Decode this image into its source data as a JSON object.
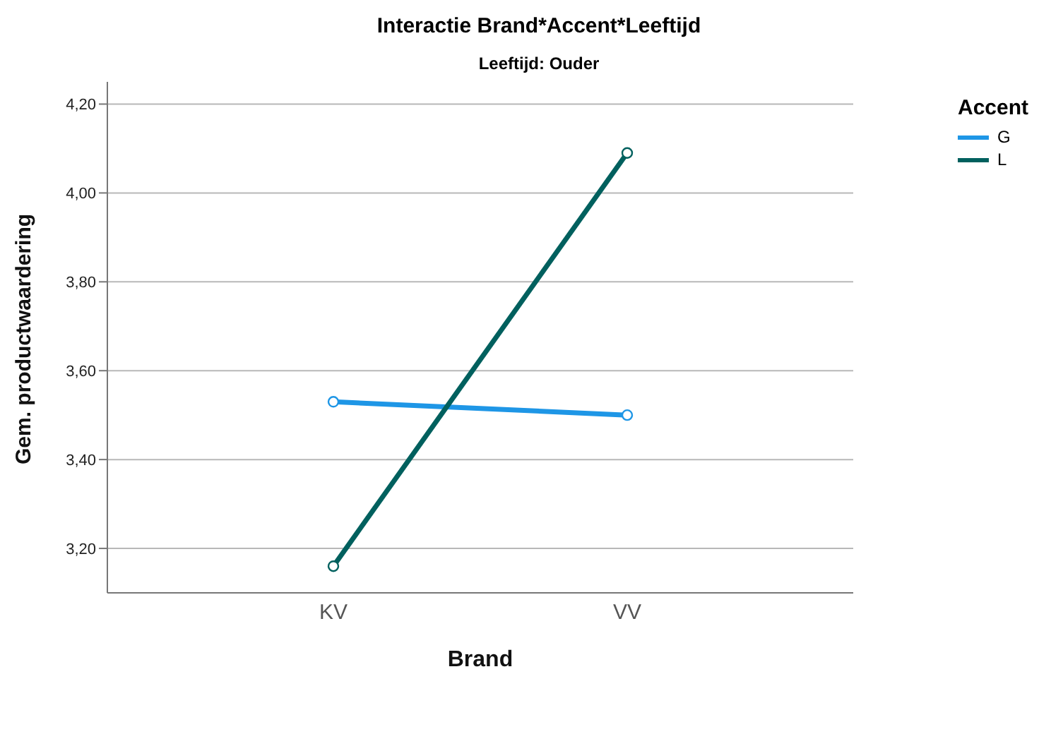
{
  "chart_data": {
    "type": "line",
    "title": "Interactie Brand*Accent*Leeftijd",
    "subtitle": "Leeftijd: Ouder",
    "xlabel": "Brand",
    "ylabel": "Gem. productwaardering",
    "legend_title": "Accent",
    "categories": [
      "KV",
      "VV"
    ],
    "series": [
      {
        "name": "G",
        "color": "#1e96e6",
        "values": [
          3.53,
          3.5
        ]
      },
      {
        "name": "L",
        "color": "#00605e",
        "values": [
          3.16,
          4.09
        ]
      }
    ],
    "ylim": [
      3.1,
      4.25
    ],
    "yticks": [
      {
        "value": 3.2,
        "label": "3,20"
      },
      {
        "value": 3.4,
        "label": "3,40"
      },
      {
        "value": 3.6,
        "label": "3,60"
      },
      {
        "value": 3.8,
        "label": "3,80"
      },
      {
        "value": 4.0,
        "label": "4,00"
      },
      {
        "value": 4.2,
        "label": "4,20"
      }
    ],
    "grid": "y",
    "legend": "top right",
    "marker": "circle",
    "line_style": "solid"
  }
}
